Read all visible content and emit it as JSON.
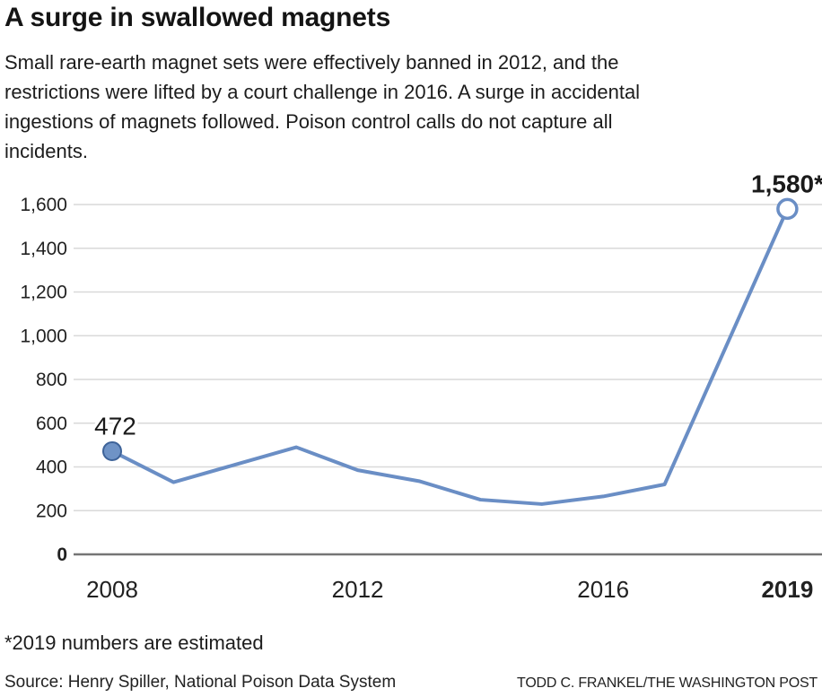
{
  "header": {
    "title": "A surge in swallowed magnets",
    "subtitle": "Small rare-earth magnet sets were effectively banned in 2012, and the\nrestrictions were lifted by a court challenge in 2016. A surge in accidental\ningestions of magnets followed. Poison control calls do not capture all\nincidents."
  },
  "chart_data": {
    "type": "line",
    "title": "A surge in swallowed magnets",
    "xlabel": "",
    "ylabel": "",
    "x": [
      2008,
      2009,
      2010,
      2011,
      2012,
      2013,
      2014,
      2015,
      2016,
      2017,
      2018,
      2019
    ],
    "values": [
      472,
      330,
      410,
      490,
      385,
      335,
      250,
      230,
      265,
      320,
      950,
      1580
    ],
    "ylim": [
      0,
      1600
    ],
    "grid": true,
    "legend": false,
    "yticks": [
      {
        "value": 0,
        "label": "0",
        "bold": true
      },
      {
        "value": 200,
        "label": "200",
        "bold": false
      },
      {
        "value": 400,
        "label": "400",
        "bold": false
      },
      {
        "value": 600,
        "label": "600",
        "bold": false
      },
      {
        "value": 800,
        "label": "800",
        "bold": false
      },
      {
        "value": 1000,
        "label": "1,000",
        "bold": false
      },
      {
        "value": 1200,
        "label": "1,200",
        "bold": false
      },
      {
        "value": 1400,
        "label": "1,400",
        "bold": false
      },
      {
        "value": 1600,
        "label": "1,600",
        "bold": false
      }
    ],
    "xticks": [
      {
        "year": 2008,
        "label": "2008",
        "bold": false
      },
      {
        "year": 2012,
        "label": "2012",
        "bold": false
      },
      {
        "year": 2016,
        "label": "2016",
        "bold": false
      },
      {
        "year": 2019,
        "label": "2019",
        "bold": true
      }
    ],
    "annotations": [
      {
        "year": 2008,
        "value": 472,
        "label": "472",
        "bold": false,
        "marker": "filled",
        "align": "center"
      },
      {
        "year": 2019,
        "value": 1580,
        "label": "1,580*",
        "bold": true,
        "marker": "open",
        "align": "right"
      }
    ],
    "colors": {
      "line": "#6a8ec5",
      "marker_fill": "#6f93c6",
      "marker_stroke": "#3e6399",
      "grid": "#d9d9d9",
      "axis": "#757575",
      "tick_text": "#212121",
      "annotation_text": "#1a1a1a"
    }
  },
  "footnote": "*2019 numbers are estimated",
  "source": "Source: Henry Spiller, National Poison Data System",
  "credit": "TODD C. FRANKEL/THE WASHINGTON POST"
}
